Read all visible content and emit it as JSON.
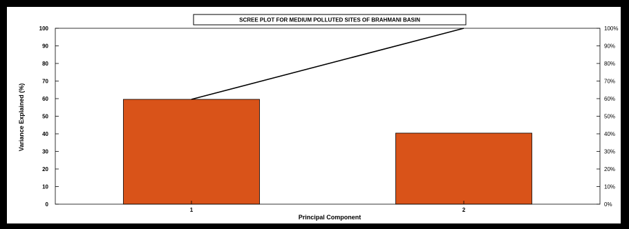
{
  "chart_data": {
    "type": "bar",
    "title": "SCREE PLOT FOR MEDIUM POLLUTED SITES OF BRAHMANI BASIN",
    "xlabel": "Principal Component",
    "ylabel": "Variance Explained (%)",
    "categories": [
      "1",
      "2"
    ],
    "values": [
      59.6,
      40.4
    ],
    "cumulative": [
      59.6,
      100
    ],
    "ylim": [
      0,
      100
    ],
    "y2lim": [
      0,
      100
    ],
    "yticks": [
      0,
      10,
      20,
      30,
      40,
      50,
      60,
      70,
      80,
      90,
      100
    ],
    "y2ticks": [
      "0%",
      "10%",
      "20%",
      "30%",
      "40%",
      "50%",
      "60%",
      "70%",
      "80%",
      "90%",
      "100%"
    ],
    "bar_color": "#D95319",
    "line_color": "#000000",
    "grid": false,
    "legend": "none"
  }
}
